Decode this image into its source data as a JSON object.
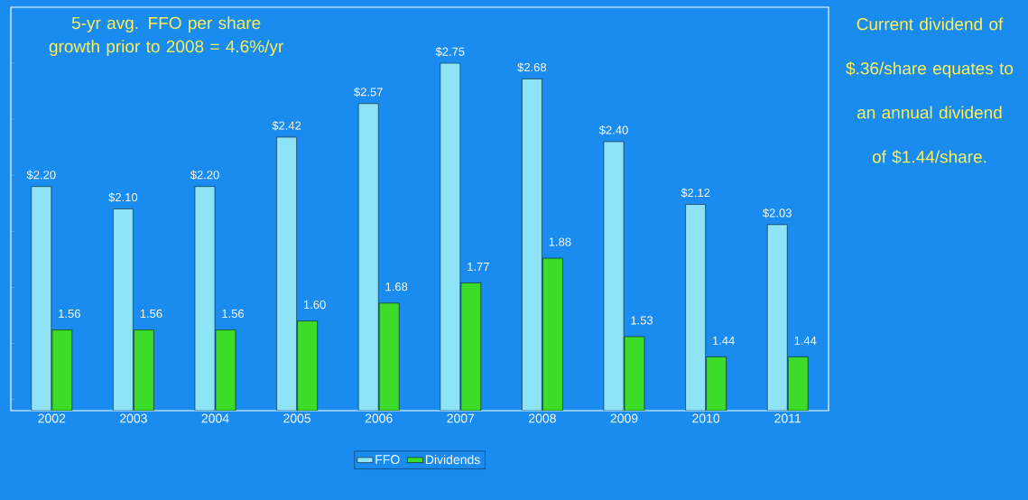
{
  "chart_data": {
    "type": "bar",
    "categories": [
      "2002",
      "2003",
      "2004",
      "2005",
      "2006",
      "2007",
      "2008",
      "2009",
      "2010",
      "2011"
    ],
    "series": [
      {
        "name": "FFO",
        "color": "#8ee4f6",
        "values": [
          2.2,
          2.1,
          2.2,
          2.42,
          2.57,
          2.75,
          2.68,
          2.4,
          2.12,
          2.03
        ],
        "value_labels": [
          "$2.20",
          "$2.10",
          "$2.20",
          "$2.42",
          "$2.57",
          "$2.75",
          "$2.68",
          "$2.40",
          "$2.12",
          "$2.03"
        ]
      },
      {
        "name": "Dividends",
        "color": "#3cdc28",
        "values": [
          1.56,
          1.56,
          1.56,
          1.6,
          1.68,
          1.77,
          1.88,
          1.53,
          1.44,
          1.44
        ],
        "value_labels": [
          "1.56",
          "1.56",
          "1.56",
          "1.60",
          "1.68",
          "1.77",
          "1.88",
          "1.53",
          "1.44",
          "1.44"
        ]
      }
    ],
    "ylim": [
      1.2,
      3.0
    ],
    "yticks": [
      {
        "value": 1.25,
        "label": null
      },
      {
        "value": 1.5,
        "label": null
      },
      {
        "value": 1.75,
        "label": null
      },
      {
        "value": 2.0,
        "label": null
      },
      {
        "value": 2.25,
        "label": null
      },
      {
        "value": 2.5,
        "label": null
      },
      {
        "value": 2.75,
        "label": null
      }
    ],
    "tick_labels": "x",
    "grid": false,
    "legend": "bottom",
    "annotations": [
      "5-yr avg. FFO per share growth prior to 2008 = 4.6%/yr",
      "Current dividend of $.36/share equates to an annual dividend of $1.44/share."
    ]
  }
}
